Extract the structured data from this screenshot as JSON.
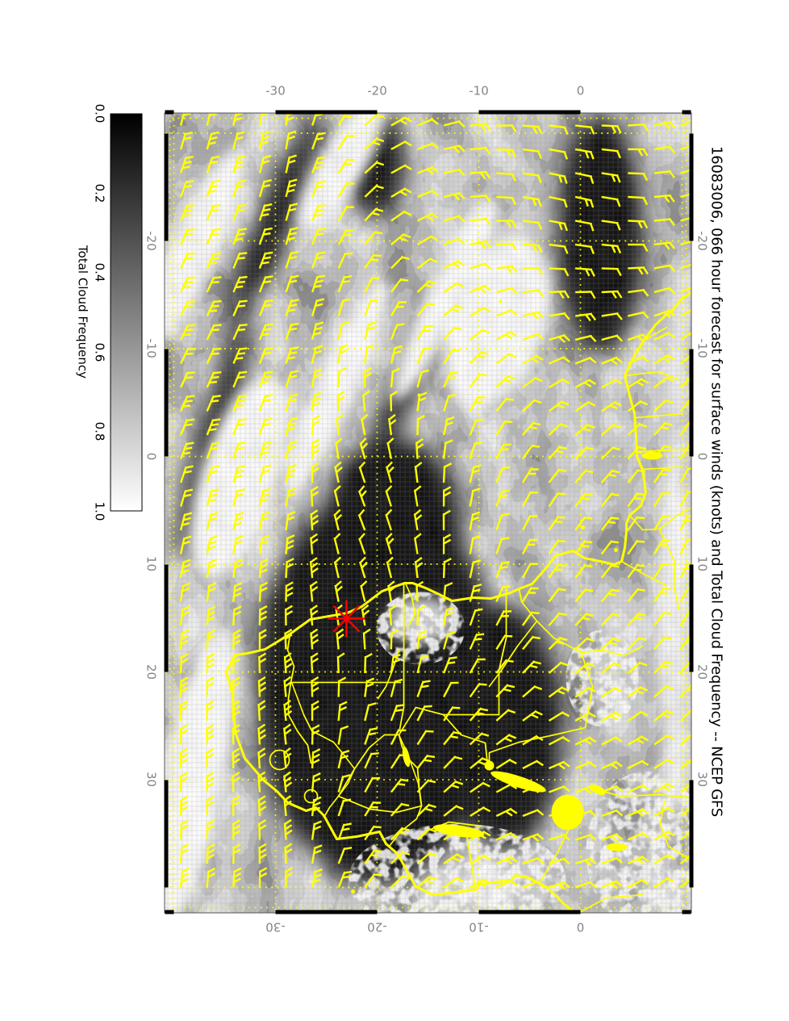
{
  "title": "16083006, 066 hour forecast for surface winds (knots) and Total Cloud Frequency -- NCEP GFS",
  "axes": {
    "lon_ticks": [
      "-20",
      "-10",
      "0",
      "10",
      "20",
      "30"
    ],
    "lat_ticks": [
      "-30",
      "-20",
      "-10",
      "0"
    ],
    "tick_label_color": "#858585"
  },
  "colorbar": {
    "caption": "Total Cloud Frequency",
    "ticks": [
      "0.0",
      "0.2",
      "0.4",
      "0.6",
      "0.8",
      "1.0"
    ],
    "min_color": "#000000",
    "max_color": "#ffffff"
  },
  "overlay": {
    "wind_barb_color": "#ffff00",
    "coast_color": "#ffff00",
    "graticule_color": "#ffff00",
    "marker_color": "#ff0000",
    "marker_shape": "asterisk"
  },
  "frame": {
    "border_color": "#555555",
    "zebra_color": "#000000"
  }
}
